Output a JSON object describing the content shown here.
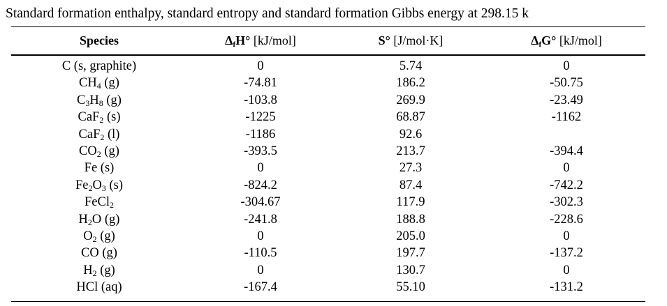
{
  "caption": "Standard formation enthalpy, standard entropy and standard formation Gibbs energy at 298.15 k",
  "headers": {
    "species": "Species",
    "dh_symbol": "Δ",
    "dh_sub": "f",
    "dh_main": "H°",
    "dh_unit": " [kJ/mol]",
    "s_main": "S°",
    "s_unit": " [J/mol·K]",
    "dg_symbol": "Δ",
    "dg_sub": "f",
    "dg_main": "G°",
    "dg_unit": " [kJ/mol]"
  },
  "rows": [
    {
      "species": [
        {
          "t": "C (s, graphite)"
        }
      ],
      "dh": "0",
      "s": "5.74",
      "dg": "0"
    },
    {
      "species": [
        {
          "t": "CH"
        },
        {
          "sub": "4"
        },
        {
          "t": " (g)"
        }
      ],
      "dh": "-74.81",
      "s": "186.2",
      "dg": "-50.75"
    },
    {
      "species": [
        {
          "t": "C"
        },
        {
          "sub": "3"
        },
        {
          "t": "H"
        },
        {
          "sub": "8"
        },
        {
          "t": " (g)"
        }
      ],
      "dh": "-103.8",
      "s": "269.9",
      "dg": "-23.49"
    },
    {
      "species": [
        {
          "t": "CaF"
        },
        {
          "sub": "2"
        },
        {
          "t": " (s)"
        }
      ],
      "dh": "-1225",
      "s": "68.87",
      "dg": "-1162"
    },
    {
      "species": [
        {
          "t": "CaF"
        },
        {
          "sub": "2"
        },
        {
          "t": " (l)"
        }
      ],
      "dh": "-1186",
      "s": "92.6",
      "dg": ""
    },
    {
      "species": [
        {
          "t": "CO"
        },
        {
          "sub": "2"
        },
        {
          "t": " (g)"
        }
      ],
      "dh": "-393.5",
      "s": "213.7",
      "dg": "-394.4"
    },
    {
      "species": [
        {
          "t": "Fe (s)"
        }
      ],
      "dh": "0",
      "s": "27.3",
      "dg": "0"
    },
    {
      "species": [
        {
          "t": "Fe"
        },
        {
          "sub": "2"
        },
        {
          "t": "O"
        },
        {
          "sub": "3"
        },
        {
          "t": " (s)"
        }
      ],
      "dh": "-824.2",
      "s": "87.4",
      "dg": "-742.2"
    },
    {
      "species": [
        {
          "t": "FeCl"
        },
        {
          "sub": "2"
        }
      ],
      "dh": "-304.67",
      "s": "117.9",
      "dg": "-302.3"
    },
    {
      "species": [
        {
          "t": "H"
        },
        {
          "sub": "2"
        },
        {
          "t": "O (g)"
        }
      ],
      "dh": "-241.8",
      "s": "188.8",
      "dg": "-228.6"
    },
    {
      "species": [
        {
          "t": "O"
        },
        {
          "sub": "2"
        },
        {
          "t": " (g)"
        }
      ],
      "dh": "0",
      "s": "205.0",
      "dg": "0"
    },
    {
      "species": [
        {
          "t": "CO (g)"
        }
      ],
      "dh": "-110.5",
      "s": "197.7",
      "dg": "-137.2"
    },
    {
      "species": [
        {
          "t": "H"
        },
        {
          "sub": "2"
        },
        {
          "t": " (g)"
        }
      ],
      "dh": "0",
      "s": "130.7",
      "dg": "0"
    },
    {
      "species": [
        {
          "t": "HCl (aq)"
        }
      ],
      "dh": "-167.4",
      "s": "55.10",
      "dg": "-131.2"
    }
  ]
}
